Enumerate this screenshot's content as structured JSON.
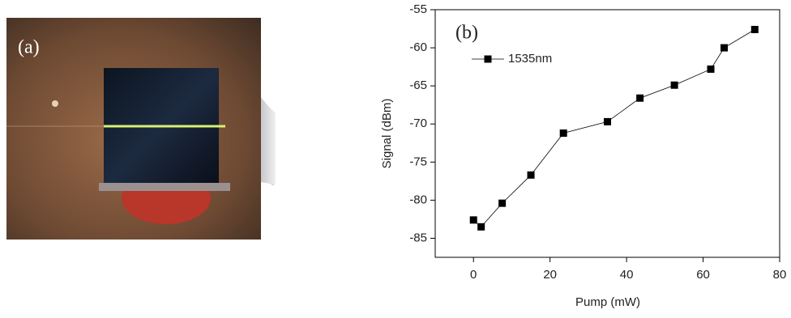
{
  "panel_a_label": "(a)",
  "chart_data": {
    "type": "line",
    "panel_label": "(b)",
    "x_label": "Pump (mW)",
    "y_label": "Signal (dBm)",
    "x": [
      0,
      2,
      7.5,
      15,
      23.5,
      35,
      43.5,
      52.5,
      62,
      65.5,
      73.5
    ],
    "series": [
      {
        "name": "1535nm",
        "color": "#000000",
        "values": [
          -82.6,
          -83.5,
          -80.4,
          -76.7,
          -71.2,
          -69.7,
          -66.6,
          -64.9,
          -62.8,
          -60,
          -57.6
        ]
      }
    ],
    "xlim": [
      -10,
      80
    ],
    "xticks": [
      0,
      20,
      40,
      60,
      80
    ],
    "ylim": [
      -87.5,
      -55
    ],
    "yticks": [
      -55,
      -60,
      -65,
      -70,
      -75,
      -80,
      -85
    ],
    "legend": "upper-left"
  }
}
